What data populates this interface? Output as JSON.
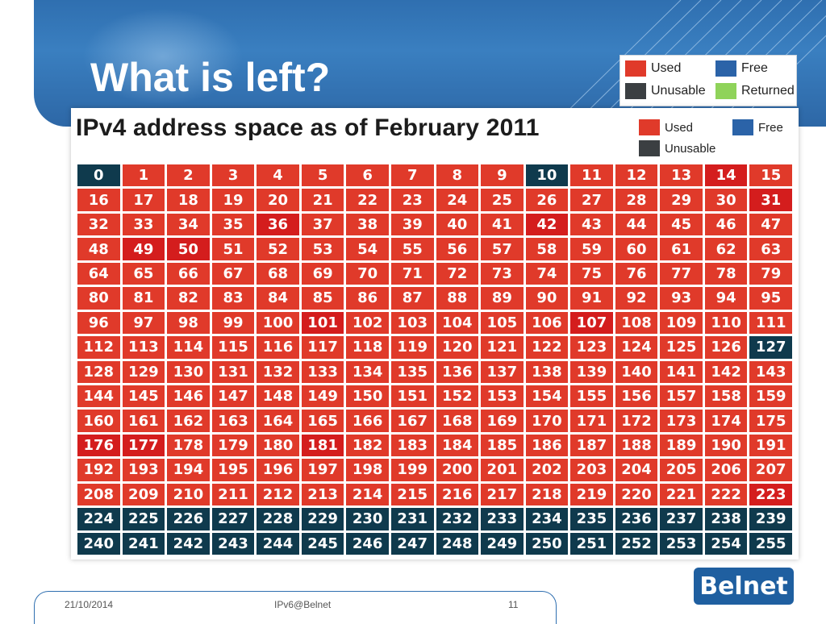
{
  "slide": {
    "title": "What is left?",
    "legend": [
      {
        "label": "Used",
        "color": "#e03a2a"
      },
      {
        "label": "Free",
        "color": "#2b63a8"
      },
      {
        "label": "Unusable",
        "color": "#3b3f42"
      },
      {
        "label": "Returned",
        "color": "#8fd35a"
      }
    ]
  },
  "figure": {
    "title": "IPv4 address space as of February 2011",
    "legend": [
      {
        "label": "Used",
        "color": "#e03a2a"
      },
      {
        "label": "Free",
        "color": "#2b63a8"
      },
      {
        "label": "Unusable",
        "color": "#3b3f42"
      }
    ],
    "colors": {
      "used": "#e03a2a",
      "used_highlight": "#d41d1d",
      "unusable": "#0f3a4d"
    },
    "unusable_blocks": [
      0,
      10,
      127,
      224,
      225,
      226,
      227,
      228,
      229,
      230,
      231,
      232,
      233,
      234,
      235,
      236,
      237,
      238,
      239,
      240,
      241,
      242,
      243,
      244,
      245,
      246,
      247,
      248,
      249,
      250,
      251,
      252,
      253,
      254,
      255
    ],
    "highlight_blocks": [
      14,
      31,
      36,
      42,
      49,
      50,
      101,
      107,
      176,
      177,
      181,
      223
    ]
  },
  "footer": {
    "date": "21/10/2014",
    "event": "IPv6@Belnet",
    "page": "11",
    "logo_text": "Belnet"
  }
}
